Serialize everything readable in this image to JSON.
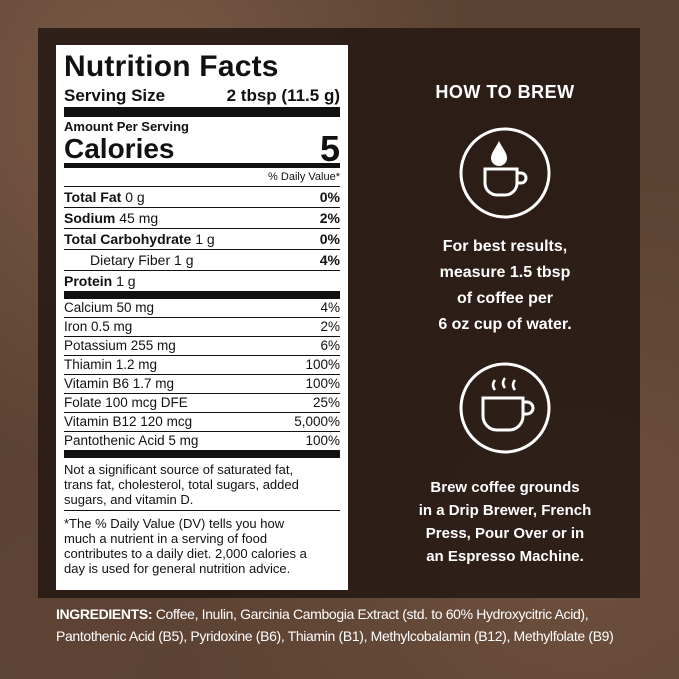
{
  "nutrition_facts": {
    "title": "Nutrition Facts",
    "serving_size": {
      "label": "Serving Size",
      "value": "2 tbsp (11.5 g)"
    },
    "amount_per_serving": "Amount Per Serving",
    "calories": {
      "label": "Calories",
      "value": "5"
    },
    "daily_value_header": "% Daily Value*",
    "main_rows": [
      {
        "name": "Total Fat",
        "amount": "0 g",
        "dv": "0%"
      },
      {
        "name": "Sodium",
        "amount": "45 mg",
        "dv": "2%"
      },
      {
        "name": "Total Carbohydrate",
        "amount": "1 g",
        "dv": "0%"
      },
      {
        "name": "Dietary Fiber",
        "amount": "1 g",
        "dv": "4%"
      },
      {
        "name": "Protein",
        "amount": "1 g"
      }
    ],
    "vitamin_rows": [
      {
        "name": "Calcium 50 mg",
        "dv": "4%"
      },
      {
        "name": "Iron 0.5 mg",
        "dv": "2%"
      },
      {
        "name": "Potassium 255 mg",
        "dv": "6%"
      },
      {
        "name": "Thiamin 1.2 mg",
        "dv": "100%"
      },
      {
        "name": "Vitamin B6 1.7 mg",
        "dv": "100%"
      },
      {
        "name": "Folate 100 mcg DFE",
        "dv": "25%"
      },
      {
        "name": "Vitamin B12 120 mcg",
        "dv": "5,000%"
      },
      {
        "name": "Pantothenic Acid 5 mg",
        "dv": "100%"
      }
    ],
    "footnote_1_lines": [
      "Not a significant source of saturated fat,",
      "trans fat, cholesterol, total sugars, added",
      "sugars, and vitamin D."
    ],
    "footnote_2_lines": [
      "*The % Daily Value (DV) tells you how",
      "much a nutrient in a serving of food",
      "contributes to a daily diet. 2,000 calories a",
      "day is used for general nutrition advice."
    ]
  },
  "how_to_brew": {
    "title": "HOW TO BREW",
    "step_1_lines": [
      "For best results,",
      "measure 1.5 tbsp",
      "of coffee per",
      "6 oz cup of water."
    ],
    "step_2_lines": [
      "Brew coffee grounds",
      "in a Drip Brewer, French",
      "Press, Pour Over or in",
      "an Espresso Machine."
    ]
  },
  "ingredients": {
    "label": "INGREDIENTS:",
    "line_1": "Coffee, Inulin, Garcinia Cambogia Extract (std. to 60% Hydroxycitric Acid),",
    "line_2": "Pantothenic Acid (B5), Pyridoxine (B6), Thiamin (B1), Methylcobalamin (B12), Methylfolate (B9)"
  }
}
